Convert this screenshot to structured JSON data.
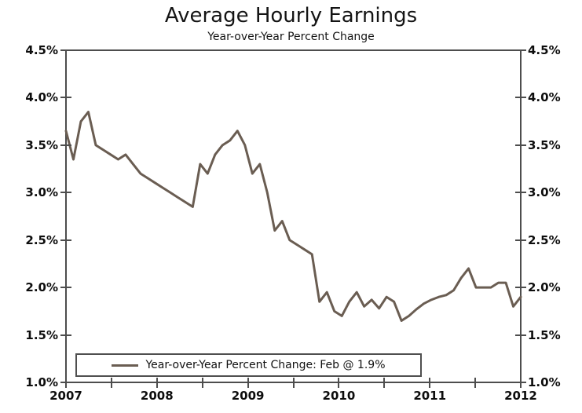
{
  "title": "Average Hourly Earnings",
  "subtitle": "Year-over-Year Percent Change",
  "legend": {
    "label": "Year-over-Year Percent Change: Feb @ 1.9%"
  },
  "colors": {
    "line": "#6a5d52",
    "axis": "#4d4d4d",
    "text": "#111111",
    "legend_border": "#4f4f4f",
    "background": "#ffffff"
  },
  "chart_data": {
    "type": "line",
    "title": "Average Hourly Earnings",
    "subtitle": "Year-over-Year Percent Change",
    "frequency": "monthly",
    "x_start": "2007-01",
    "x_end": "2012-02",
    "x_tick_labels": [
      "2007",
      "2008",
      "2009",
      "2010",
      "2011",
      "2012"
    ],
    "y_tick_labels": [
      "4.5%",
      "4.0%",
      "3.5%",
      "3.0%",
      "2.5%",
      "2.0%",
      "1.5%",
      "1.0%"
    ],
    "ylim": [
      1.0,
      4.5
    ],
    "y_axis_sides": "both",
    "grid": false,
    "legend_position": "bottom-left-inside",
    "series": [
      {
        "name": "Year-over-Year Percent Change",
        "last_point_label": "Feb @ 1.9%",
        "values": [
          3.65,
          3.35,
          3.75,
          3.85,
          3.5,
          3.45,
          3.4,
          3.35,
          3.4,
          3.3,
          3.2,
          3.15,
          3.1,
          3.05,
          3.0,
          2.95,
          2.9,
          2.85,
          3.3,
          3.2,
          3.4,
          3.5,
          3.55,
          3.65,
          3.5,
          3.2,
          3.3,
          3.0,
          2.6,
          2.7,
          2.5,
          2.45,
          2.4,
          2.35,
          1.85,
          1.95,
          1.75,
          1.7,
          1.85,
          1.95,
          1.8,
          1.87,
          1.78,
          1.9,
          1.85,
          1.65,
          1.7,
          1.77,
          1.83,
          1.87,
          1.9,
          1.92,
          1.97,
          2.1,
          2.2,
          2.0,
          2.0,
          2.0,
          2.05,
          2.05,
          1.8,
          1.9
        ]
      }
    ]
  }
}
